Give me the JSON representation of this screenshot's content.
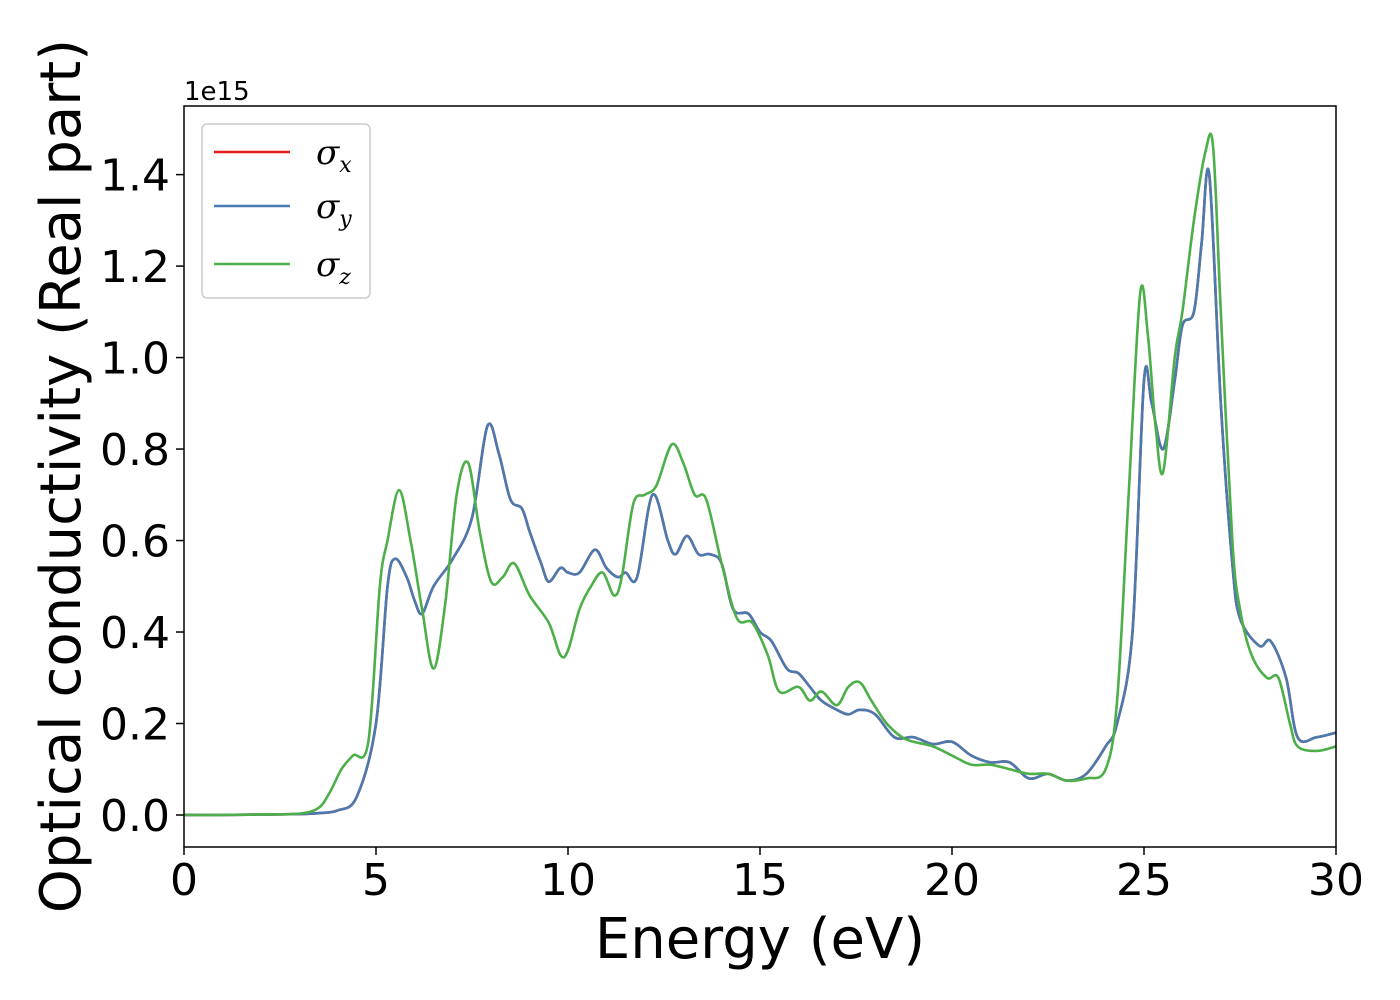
{
  "chart_data": {
    "type": "line",
    "xlabel": "Energy (eV)",
    "ylabel": "Optical conductivity (Real part)",
    "y_offset_label": "1e15",
    "xlim": [
      0,
      30
    ],
    "ylim": [
      -0.07,
      1.55
    ],
    "x_ticks": [
      0,
      5,
      10,
      15,
      20,
      25,
      30
    ],
    "y_ticks": [
      0.0,
      0.2,
      0.4,
      0.6,
      0.8,
      1.0,
      1.2,
      1.4
    ],
    "x_tick_labels": [
      "0",
      "5",
      "10",
      "15",
      "20",
      "25",
      "30"
    ],
    "y_tick_labels": [
      "0.0",
      "0.2",
      "0.4",
      "0.6",
      "0.8",
      "1.0",
      "1.2",
      "1.4"
    ],
    "grid": false,
    "legend_position": "top-left",
    "series": [
      {
        "name": "σx",
        "symbol": "σ",
        "subscript": "x",
        "color": "#e41a1c",
        "x": [
          0,
          1,
          2,
          3,
          3.5,
          4,
          4.5,
          5,
          5.3,
          5.5,
          5.8,
          6,
          6.2,
          6.5,
          7,
          7.5,
          7.9,
          8.2,
          8.5,
          8.8,
          9,
          9.3,
          9.5,
          9.8,
          10,
          10.3,
          10.7,
          11,
          11.3,
          11.5,
          11.8,
          12.2,
          12.6,
          12.8,
          13.1,
          13.4,
          13.7,
          14,
          14.3,
          14.7,
          15,
          15.3,
          15.7,
          16,
          16.3,
          16.6,
          17,
          17.3,
          17.6,
          18,
          18.5,
          19,
          19.5,
          20,
          20.5,
          21,
          21.5,
          22,
          22.5,
          23,
          23.5,
          24,
          24.3,
          24.7,
          25,
          25.2,
          25.5,
          25.8,
          26,
          26.3,
          26.5,
          26.7,
          27,
          27.3,
          27.5,
          28,
          28.3,
          28.7,
          29,
          29.5,
          30
        ],
        "y": [
          0,
          0,
          0.001,
          0.002,
          0.004,
          0.01,
          0.04,
          0.2,
          0.5,
          0.56,
          0.52,
          0.47,
          0.44,
          0.5,
          0.56,
          0.65,
          0.85,
          0.79,
          0.69,
          0.67,
          0.62,
          0.55,
          0.51,
          0.54,
          0.53,
          0.53,
          0.58,
          0.54,
          0.52,
          0.53,
          0.52,
          0.7,
          0.6,
          0.57,
          0.61,
          0.57,
          0.57,
          0.55,
          0.45,
          0.44,
          0.4,
          0.38,
          0.32,
          0.31,
          0.28,
          0.25,
          0.23,
          0.22,
          0.23,
          0.22,
          0.17,
          0.17,
          0.155,
          0.16,
          0.13,
          0.115,
          0.115,
          0.08,
          0.09,
          0.075,
          0.09,
          0.15,
          0.2,
          0.4,
          0.95,
          0.9,
          0.8,
          0.95,
          1.07,
          1.1,
          1.25,
          1.4,
          0.9,
          0.55,
          0.43,
          0.37,
          0.38,
          0.3,
          0.17,
          0.17,
          0.18
        ]
      },
      {
        "name": "σy",
        "symbol": "σ",
        "subscript": "y",
        "color": "#4a7bb0",
        "x": [
          0,
          1,
          2,
          3,
          3.5,
          4,
          4.5,
          5,
          5.3,
          5.5,
          5.8,
          6,
          6.2,
          6.5,
          7,
          7.5,
          7.9,
          8.2,
          8.5,
          8.8,
          9,
          9.3,
          9.5,
          9.8,
          10,
          10.3,
          10.7,
          11,
          11.3,
          11.5,
          11.8,
          12.2,
          12.6,
          12.8,
          13.1,
          13.4,
          13.7,
          14,
          14.3,
          14.7,
          15,
          15.3,
          15.7,
          16,
          16.3,
          16.6,
          17,
          17.3,
          17.6,
          18,
          18.5,
          19,
          19.5,
          20,
          20.5,
          21,
          21.5,
          22,
          22.5,
          23,
          23.5,
          24,
          24.3,
          24.7,
          25,
          25.2,
          25.5,
          25.8,
          26,
          26.3,
          26.5,
          26.7,
          27,
          27.3,
          27.5,
          28,
          28.3,
          28.7,
          29,
          29.5,
          30
        ],
        "y": [
          0,
          0,
          0.001,
          0.002,
          0.004,
          0.01,
          0.04,
          0.2,
          0.5,
          0.56,
          0.52,
          0.47,
          0.44,
          0.5,
          0.56,
          0.65,
          0.85,
          0.79,
          0.69,
          0.67,
          0.62,
          0.55,
          0.51,
          0.54,
          0.53,
          0.53,
          0.58,
          0.54,
          0.52,
          0.53,
          0.52,
          0.7,
          0.6,
          0.57,
          0.61,
          0.57,
          0.57,
          0.55,
          0.45,
          0.44,
          0.4,
          0.38,
          0.32,
          0.31,
          0.28,
          0.25,
          0.23,
          0.22,
          0.23,
          0.22,
          0.17,
          0.17,
          0.155,
          0.16,
          0.13,
          0.115,
          0.115,
          0.08,
          0.09,
          0.075,
          0.09,
          0.15,
          0.2,
          0.4,
          0.95,
          0.9,
          0.8,
          0.95,
          1.07,
          1.1,
          1.25,
          1.4,
          0.9,
          0.55,
          0.43,
          0.37,
          0.38,
          0.3,
          0.17,
          0.17,
          0.18
        ]
      },
      {
        "name": "σz",
        "symbol": "σ",
        "subscript": "z",
        "color": "#4daf4a",
        "x": [
          0,
          1,
          2,
          3,
          3.5,
          3.8,
          4.1,
          4.4,
          4.8,
          5.1,
          5.3,
          5.6,
          5.9,
          6.2,
          6.5,
          6.8,
          7.1,
          7.4,
          7.7,
          8,
          8.3,
          8.6,
          9,
          9.5,
          9.8,
          10,
          10.3,
          10.6,
          10.9,
          11.2,
          11.4,
          11.7,
          12,
          12.3,
          12.7,
          13,
          13.3,
          13.6,
          14,
          14.4,
          14.8,
          15.2,
          15.5,
          16,
          16.3,
          16.6,
          17,
          17.3,
          17.6,
          17.9,
          18.3,
          18.7,
          19,
          19.5,
          20,
          20.5,
          21,
          21.5,
          22,
          22.5,
          23,
          23.5,
          24,
          24.3,
          24.6,
          24.9,
          25.1,
          25.3,
          25.5,
          25.8,
          26,
          26.3,
          26.6,
          26.8,
          27,
          27.3,
          27.5,
          27.8,
          28.2,
          28.5,
          28.8,
          29,
          29.5,
          30
        ],
        "y": [
          0,
          0,
          0.001,
          0.003,
          0.015,
          0.05,
          0.1,
          0.13,
          0.16,
          0.5,
          0.6,
          0.71,
          0.6,
          0.45,
          0.32,
          0.46,
          0.7,
          0.77,
          0.62,
          0.51,
          0.52,
          0.55,
          0.48,
          0.42,
          0.35,
          0.36,
          0.45,
          0.5,
          0.53,
          0.48,
          0.52,
          0.68,
          0.7,
          0.72,
          0.81,
          0.77,
          0.7,
          0.69,
          0.55,
          0.43,
          0.42,
          0.35,
          0.27,
          0.28,
          0.25,
          0.27,
          0.24,
          0.28,
          0.29,
          0.25,
          0.2,
          0.17,
          0.16,
          0.15,
          0.13,
          0.11,
          0.11,
          0.1,
          0.09,
          0.09,
          0.075,
          0.08,
          0.1,
          0.25,
          0.7,
          1.14,
          1.05,
          0.85,
          0.75,
          1,
          1.1,
          1.3,
          1.45,
          1.46,
          1.1,
          0.6,
          0.45,
          0.35,
          0.3,
          0.3,
          0.2,
          0.15,
          0.14,
          0.15
        ]
      }
    ]
  }
}
